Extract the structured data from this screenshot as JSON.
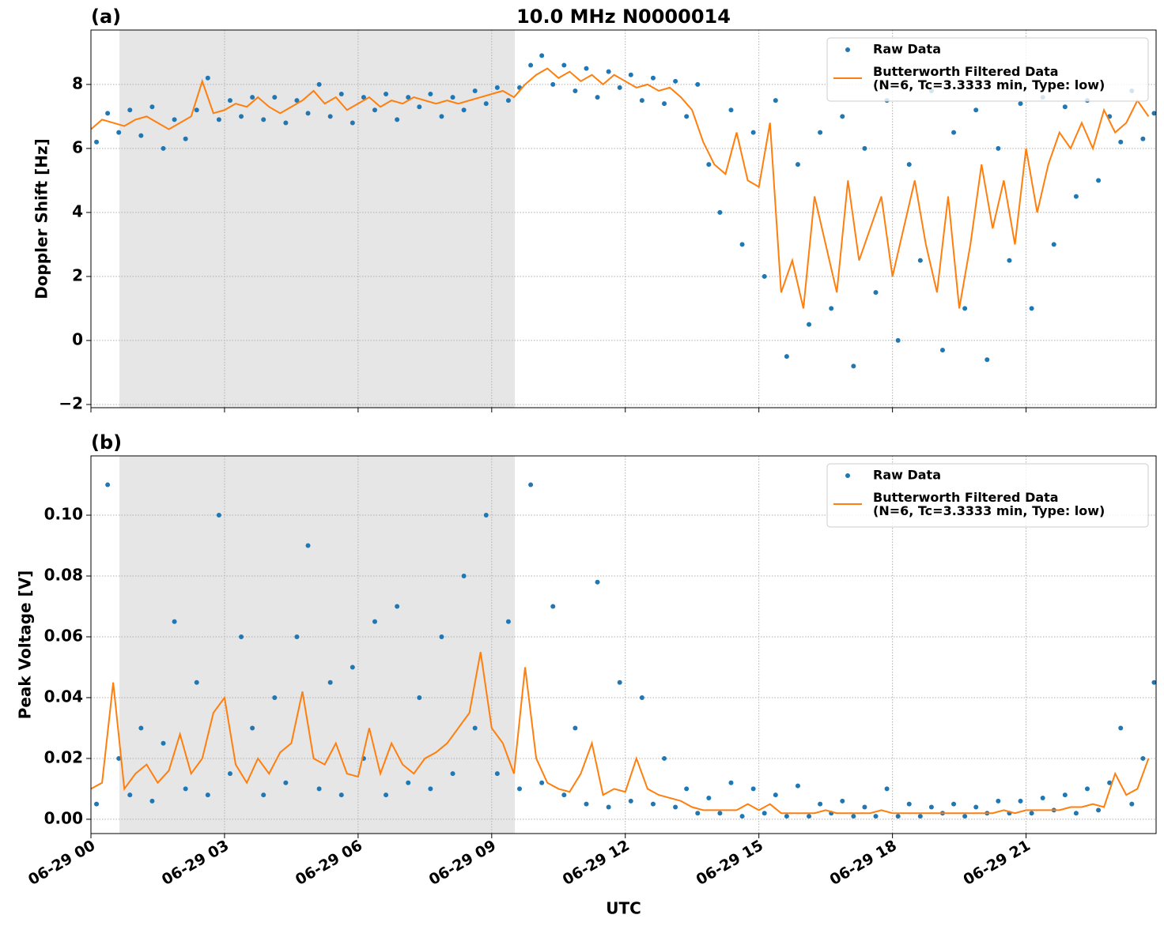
{
  "chart_data": [
    {
      "type": "scatter-line",
      "panel_label": "(a)",
      "title": "10.0 MHz N0000014",
      "ylabel": "Doppler Shift [Hz]",
      "xlim": [
        0,
        23.92
      ],
      "ylim": [
        -2.1,
        9.7
      ],
      "xticks": [
        0,
        3,
        6,
        9,
        12,
        15,
        18,
        21
      ],
      "yticks": [
        {
          "value": -2,
          "label": "−2"
        },
        0,
        2,
        4,
        6,
        8
      ],
      "grid": true,
      "legend": "upper right",
      "shaded_span": [
        0.64,
        9.52
      ],
      "shade_color": "#e6e6e6",
      "series": [
        {
          "name": "Raw Data",
          "color": "#1f77b4",
          "kind": "scatter",
          "x": [
            0.125,
            0.375,
            0.625,
            0.875,
            1.125,
            1.375,
            1.625,
            1.875,
            2.125,
            2.375,
            2.625,
            2.875,
            3.125,
            3.375,
            3.625,
            3.875,
            4.125,
            4.375,
            4.625,
            4.875,
            5.125,
            5.375,
            5.625,
            5.875,
            6.125,
            6.375,
            6.625,
            6.875,
            7.125,
            7.375,
            7.625,
            7.875,
            8.125,
            8.375,
            8.625,
            8.875,
            9.125,
            9.375,
            9.625,
            9.875,
            10.125,
            10.375,
            10.625,
            10.875,
            11.125,
            11.375,
            11.625,
            11.875,
            12.125,
            12.375,
            12.625,
            12.875,
            13.125,
            13.375,
            13.625,
            13.875,
            14.125,
            14.375,
            14.625,
            14.875,
            15.125,
            15.375,
            15.625,
            15.875,
            16.125,
            16.375,
            16.625,
            16.875,
            17.125,
            17.375,
            17.625,
            17.875,
            18.125,
            18.375,
            18.625,
            18.875,
            19.125,
            19.375,
            19.625,
            19.875,
            20.125,
            20.375,
            20.625,
            20.875,
            21.125,
            21.375,
            21.625,
            21.875,
            22.125,
            22.375,
            22.625,
            22.875,
            23.125,
            23.375,
            23.625,
            23.875
          ],
          "values": [
            6.2,
            7.1,
            6.5,
            7.2,
            6.4,
            7.3,
            6.0,
            6.9,
            6.3,
            7.2,
            8.2,
            6.9,
            7.5,
            7.0,
            7.6,
            6.9,
            7.6,
            6.8,
            7.5,
            7.1,
            8.0,
            7.0,
            7.7,
            6.8,
            7.6,
            7.2,
            7.7,
            6.9,
            7.6,
            7.3,
            7.7,
            7.0,
            7.6,
            7.2,
            7.8,
            7.4,
            7.9,
            7.5,
            7.9,
            8.6,
            8.9,
            8.0,
            8.6,
            7.8,
            8.5,
            7.6,
            8.4,
            7.9,
            8.3,
            7.5,
            8.2,
            7.4,
            8.1,
            7.0,
            8.0,
            5.5,
            4.0,
            7.2,
            3.0,
            6.5,
            2.0,
            7.5,
            -0.5,
            5.5,
            0.5,
            6.5,
            1.0,
            7.0,
            -0.8,
            6.0,
            1.5,
            7.5,
            0.0,
            5.5,
            2.5,
            7.8,
            -0.3,
            6.5,
            1.0,
            7.2,
            -0.6,
            6.0,
            2.5,
            7.4,
            1.0,
            7.6,
            3.0,
            7.3,
            4.5,
            7.5,
            5.0,
            7.0,
            6.2,
            7.8,
            6.3,
            7.1
          ]
        },
        {
          "name": "Butterworth Filtered Data\n(N=6, Tc=3.3333 min, Type: low)",
          "color": "#ff7f0e",
          "kind": "line",
          "x": [
            0,
            0.25,
            0.5,
            0.75,
            1,
            1.25,
            1.5,
            1.75,
            2,
            2.25,
            2.5,
            2.75,
            3,
            3.25,
            3.5,
            3.75,
            4,
            4.25,
            4.5,
            4.75,
            5,
            5.25,
            5.5,
            5.75,
            6,
            6.25,
            6.5,
            6.75,
            7,
            7.25,
            7.5,
            7.75,
            8,
            8.25,
            8.5,
            8.75,
            9,
            9.25,
            9.5,
            9.75,
            10,
            10.25,
            10.5,
            10.75,
            11,
            11.25,
            11.5,
            11.75,
            12,
            12.25,
            12.5,
            12.75,
            13,
            13.25,
            13.5,
            13.75,
            14,
            14.25,
            14.5,
            14.75,
            15,
            15.25,
            15.5,
            15.75,
            16,
            16.25,
            16.5,
            16.75,
            17,
            17.25,
            17.5,
            17.75,
            18,
            18.25,
            18.5,
            18.75,
            19,
            19.25,
            19.5,
            19.75,
            20,
            20.25,
            20.5,
            20.75,
            21,
            21.25,
            21.5,
            21.75,
            22,
            22.25,
            22.5,
            22.75,
            23,
            23.25,
            23.5,
            23.75
          ],
          "values": [
            6.6,
            6.9,
            6.8,
            6.7,
            6.9,
            7.0,
            6.8,
            6.6,
            6.8,
            7.0,
            8.1,
            7.1,
            7.2,
            7.4,
            7.3,
            7.6,
            7.3,
            7.1,
            7.3,
            7.5,
            7.8,
            7.4,
            7.6,
            7.2,
            7.4,
            7.6,
            7.3,
            7.5,
            7.4,
            7.6,
            7.5,
            7.4,
            7.5,
            7.4,
            7.5,
            7.6,
            7.7,
            7.8,
            7.6,
            8.0,
            8.3,
            8.5,
            8.2,
            8.4,
            8.1,
            8.3,
            8.0,
            8.3,
            8.1,
            7.9,
            8.0,
            7.8,
            7.9,
            7.6,
            7.2,
            6.2,
            5.5,
            5.2,
            6.5,
            5.0,
            4.8,
            6.8,
            1.5,
            2.5,
            1.0,
            4.5,
            3.0,
            1.5,
            5.0,
            2.5,
            3.5,
            4.5,
            2.0,
            3.5,
            5.0,
            3.0,
            1.5,
            4.5,
            1.0,
            3.0,
            5.5,
            3.5,
            5.0,
            3.0,
            6.0,
            4.0,
            5.5,
            6.5,
            6.0,
            6.8,
            6.0,
            7.2,
            6.5,
            6.8,
            7.5,
            7.0
          ]
        }
      ]
    },
    {
      "type": "scatter-line",
      "panel_label": "(b)",
      "ylabel": "Peak Voltage [V]",
      "xlabel": "UTC",
      "xlim": [
        0,
        23.92
      ],
      "ylim": [
        -0.0047,
        0.1195
      ],
      "xticks": [
        {
          "value": 0,
          "label": "06-29 00"
        },
        {
          "value": 3,
          "label": "06-29 03"
        },
        {
          "value": 6,
          "label": "06-29 06"
        },
        {
          "value": 9,
          "label": "06-29 09"
        },
        {
          "value": 12,
          "label": "06-29 12"
        },
        {
          "value": 15,
          "label": "06-29 15"
        },
        {
          "value": 18,
          "label": "06-29 18"
        },
        {
          "value": 21,
          "label": "06-29 21"
        }
      ],
      "yticks": [
        {
          "value": 0,
          "label": "0.00"
        },
        {
          "value": 0.02,
          "label": "0.02"
        },
        {
          "value": 0.04,
          "label": "0.04"
        },
        {
          "value": 0.06,
          "label": "0.06"
        },
        {
          "value": 0.08,
          "label": "0.08"
        },
        {
          "value": 0.1,
          "label": "0.10"
        }
      ],
      "grid": true,
      "legend": "upper right",
      "shaded_span": [
        0.64,
        9.52
      ],
      "shade_color": "#e6e6e6",
      "series": [
        {
          "name": "Raw Data",
          "color": "#1f77b4",
          "kind": "scatter",
          "x": [
            0.125,
            0.375,
            0.625,
            0.875,
            1.125,
            1.375,
            1.625,
            1.875,
            2.125,
            2.375,
            2.625,
            2.875,
            3.125,
            3.375,
            3.625,
            3.875,
            4.125,
            4.375,
            4.625,
            4.875,
            5.125,
            5.375,
            5.625,
            5.875,
            6.125,
            6.375,
            6.625,
            6.875,
            7.125,
            7.375,
            7.625,
            7.875,
            8.125,
            8.375,
            8.625,
            8.875,
            9.125,
            9.375,
            9.625,
            9.875,
            10.125,
            10.375,
            10.625,
            10.875,
            11.125,
            11.375,
            11.625,
            11.875,
            12.125,
            12.375,
            12.625,
            12.875,
            13.125,
            13.375,
            13.625,
            13.875,
            14.125,
            14.375,
            14.625,
            14.875,
            15.125,
            15.375,
            15.625,
            15.875,
            16.125,
            16.375,
            16.625,
            16.875,
            17.125,
            17.375,
            17.625,
            17.875,
            18.125,
            18.375,
            18.625,
            18.875,
            19.125,
            19.375,
            19.625,
            19.875,
            20.125,
            20.375,
            20.625,
            20.875,
            21.125,
            21.375,
            21.625,
            21.875,
            22.125,
            22.375,
            22.625,
            22.875,
            23.125,
            23.375,
            23.625,
            23.875
          ],
          "values": [
            0.005,
            0.11,
            0.02,
            0.008,
            0.03,
            0.006,
            0.025,
            0.065,
            0.01,
            0.045,
            0.008,
            0.1,
            0.015,
            0.06,
            0.03,
            0.008,
            0.04,
            0.012,
            0.06,
            0.09,
            0.01,
            0.045,
            0.008,
            0.05,
            0.02,
            0.065,
            0.008,
            0.07,
            0.012,
            0.04,
            0.01,
            0.06,
            0.015,
            0.08,
            0.03,
            0.1,
            0.015,
            0.065,
            0.01,
            0.11,
            0.012,
            0.07,
            0.008,
            0.03,
            0.005,
            0.078,
            0.004,
            0.045,
            0.006,
            0.04,
            0.005,
            0.02,
            0.004,
            0.01,
            0.002,
            0.007,
            0.002,
            0.012,
            0.001,
            0.01,
            0.002,
            0.008,
            0.001,
            0.011,
            0.001,
            0.005,
            0.002,
            0.006,
            0.001,
            0.004,
            0.001,
            0.01,
            0.001,
            0.005,
            0.001,
            0.004,
            0.002,
            0.005,
            0.001,
            0.004,
            0.002,
            0.006,
            0.002,
            0.006,
            0.002,
            0.007,
            0.003,
            0.008,
            0.002,
            0.01,
            0.003,
            0.012,
            0.03,
            0.005,
            0.02,
            0.045
          ]
        },
        {
          "name": "Butterworth Filtered Data\n(N=6, Tc=3.3333 min, Type: low)",
          "color": "#ff7f0e",
          "kind": "line",
          "x": [
            0,
            0.25,
            0.5,
            0.75,
            1,
            1.25,
            1.5,
            1.75,
            2,
            2.25,
            2.5,
            2.75,
            3,
            3.25,
            3.5,
            3.75,
            4,
            4.25,
            4.5,
            4.75,
            5,
            5.25,
            5.5,
            5.75,
            6,
            6.25,
            6.5,
            6.75,
            7,
            7.25,
            7.5,
            7.75,
            8,
            8.25,
            8.5,
            8.75,
            9,
            9.25,
            9.5,
            9.75,
            10,
            10.25,
            10.5,
            10.75,
            11,
            11.25,
            11.5,
            11.75,
            12,
            12.25,
            12.5,
            12.75,
            13,
            13.25,
            13.5,
            13.75,
            14,
            14.25,
            14.5,
            14.75,
            15,
            15.25,
            15.5,
            15.75,
            16,
            16.25,
            16.5,
            16.75,
            17,
            17.25,
            17.5,
            17.75,
            18,
            18.25,
            18.5,
            18.75,
            19,
            19.25,
            19.5,
            19.75,
            20,
            20.25,
            20.5,
            20.75,
            21,
            21.25,
            21.5,
            21.75,
            22,
            22.25,
            22.5,
            22.75,
            23,
            23.25,
            23.5,
            23.75
          ],
          "values": [
            0.01,
            0.012,
            0.045,
            0.01,
            0.015,
            0.018,
            0.012,
            0.016,
            0.028,
            0.015,
            0.02,
            0.035,
            0.04,
            0.018,
            0.012,
            0.02,
            0.015,
            0.022,
            0.025,
            0.042,
            0.02,
            0.018,
            0.025,
            0.015,
            0.014,
            0.03,
            0.015,
            0.025,
            0.018,
            0.015,
            0.02,
            0.022,
            0.025,
            0.03,
            0.035,
            0.055,
            0.03,
            0.025,
            0.015,
            0.05,
            0.02,
            0.012,
            0.01,
            0.009,
            0.015,
            0.025,
            0.008,
            0.01,
            0.009,
            0.02,
            0.01,
            0.008,
            0.007,
            0.006,
            0.004,
            0.003,
            0.003,
            0.003,
            0.003,
            0.005,
            0.003,
            0.005,
            0.002,
            0.002,
            0.002,
            0.002,
            0.003,
            0.002,
            0.002,
            0.002,
            0.002,
            0.003,
            0.002,
            0.002,
            0.002,
            0.002,
            0.002,
            0.002,
            0.002,
            0.002,
            0.002,
            0.002,
            0.003,
            0.002,
            0.003,
            0.003,
            0.003,
            0.003,
            0.004,
            0.004,
            0.005,
            0.004,
            0.015,
            0.008,
            0.01,
            0.02
          ]
        }
      ]
    }
  ]
}
